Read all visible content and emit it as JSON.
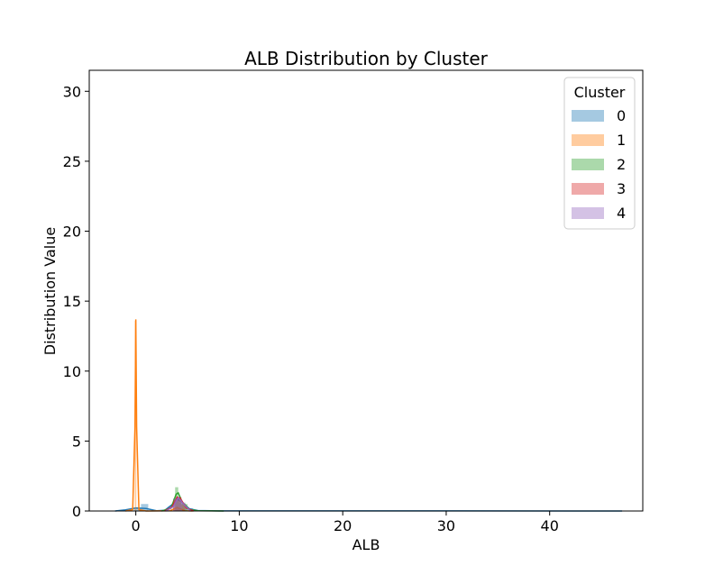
{
  "chart_data": {
    "type": "histogram-kde",
    "title": "ALB Distribution by Cluster",
    "xlabel": "ALB",
    "ylabel": "Distribution Value",
    "xlim": [
      -4.5,
      49
    ],
    "ylim": [
      0,
      31.5
    ],
    "xticks": [
      0,
      10,
      20,
      30,
      40
    ],
    "yticks": [
      0,
      5,
      10,
      15,
      20,
      25,
      30
    ],
    "grid": false,
    "legend": {
      "title": "Cluster",
      "placement": "top-right",
      "entries": [
        "0",
        "1",
        "2",
        "3",
        "4"
      ]
    },
    "colors": {
      "0": "#1f77b4",
      "1": "#ff7f0e",
      "2": "#2ca02c",
      "3": "#d62728",
      "4": "#9467bd"
    },
    "series": [
      {
        "name": "0",
        "bars": [
          [
            -0.2,
            0.5,
            0.2
          ],
          [
            0.5,
            1.2,
            0.5
          ],
          [
            3.6,
            4.2,
            0.9
          ],
          [
            4.2,
            4.8,
            0.6
          ],
          [
            4.8,
            5.5,
            0.2
          ]
        ],
        "kde": [
          [
            -2,
            0
          ],
          [
            -1,
            0.08
          ],
          [
            0,
            0.22
          ],
          [
            1,
            0.18
          ],
          [
            2,
            0.02
          ],
          [
            2.8,
            0.05
          ],
          [
            3.5,
            0.45
          ],
          [
            4,
            0.85
          ],
          [
            4.5,
            0.6
          ],
          [
            5.2,
            0.15
          ],
          [
            6,
            0.03
          ],
          [
            8,
            0.01
          ],
          [
            15,
            0.005
          ],
          [
            30,
            0.005
          ],
          [
            47,
            0
          ]
        ]
      },
      {
        "name": "1",
        "bars": [
          [
            -0.1,
            0.05,
            13.6
          ],
          [
            3.7,
            4.3,
            0.2
          ]
        ],
        "kde": [
          [
            -1,
            0
          ],
          [
            -0.3,
            0.1
          ],
          [
            -0.08,
            6
          ],
          [
            0,
            13.7
          ],
          [
            0.08,
            6
          ],
          [
            0.3,
            0.1
          ],
          [
            1,
            0
          ],
          [
            3.3,
            0.02
          ],
          [
            4,
            0.25
          ],
          [
            4.7,
            0.02
          ],
          [
            5.5,
            0
          ]
        ]
      },
      {
        "name": "2",
        "bars": [
          [
            3.8,
            4.1,
            1.7
          ],
          [
            4.1,
            4.4,
            1.0
          ],
          [
            4.4,
            5.0,
            0.5
          ]
        ],
        "kde": [
          [
            2.5,
            0
          ],
          [
            3.4,
            0.2
          ],
          [
            3.9,
            1.2
          ],
          [
            4.1,
            1.3
          ],
          [
            4.5,
            0.6
          ],
          [
            5.2,
            0.1
          ],
          [
            6,
            0.02
          ],
          [
            8.5,
            0
          ]
        ]
      },
      {
        "name": "3",
        "bars": [
          [
            3.6,
            4.0,
            0.8
          ],
          [
            4.0,
            4.4,
            1.0
          ],
          [
            4.4,
            4.8,
            0.5
          ]
        ],
        "kde": [
          [
            2.8,
            0
          ],
          [
            3.5,
            0.3
          ],
          [
            4,
            1.0
          ],
          [
            4.3,
            0.9
          ],
          [
            4.9,
            0.2
          ],
          [
            5.6,
            0
          ]
        ]
      },
      {
        "name": "4",
        "bars": [
          [
            3.7,
            4.1,
            0.9
          ],
          [
            4.1,
            4.5,
            0.8
          ]
        ],
        "kde": [
          [
            2.9,
            0
          ],
          [
            3.6,
            0.3
          ],
          [
            4.1,
            0.95
          ],
          [
            4.6,
            0.5
          ],
          [
            5.3,
            0
          ]
        ]
      }
    ]
  }
}
